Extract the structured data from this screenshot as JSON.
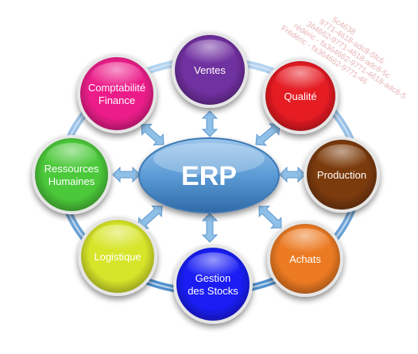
{
  "center": {
    "label": "ERP",
    "color": "#5b9bd5"
  },
  "ring_color": "#7fb3e0",
  "arrow_color": "#8fc0e8",
  "modules": [
    {
      "id": "ventes",
      "lines": [
        "Ventes"
      ],
      "color": "#7030a0"
    },
    {
      "id": "qualite",
      "lines": [
        "Qualité"
      ],
      "color": "#e51b23"
    },
    {
      "id": "production",
      "lines": [
        "Production"
      ],
      "color": "#7b3a0a"
    },
    {
      "id": "achats",
      "lines": [
        "Achats"
      ],
      "color": "#ec7a23"
    },
    {
      "id": "gestion-des-stocks",
      "lines": [
        "Gestion",
        "des Stocks"
      ],
      "color": "#1a1ef5"
    },
    {
      "id": "logistique",
      "lines": [
        "Logistique"
      ],
      "color": "#d7e52a"
    },
    {
      "id": "ressources-humaines",
      "lines": [
        "Ressources",
        "Humaines"
      ],
      "color": "#4cc93a"
    },
    {
      "id": "comptabilite-finance",
      "lines": [
        "Comptabilité",
        "Finance"
      ],
      "color": "#ec1e8a"
    }
  ],
  "watermark": {
    "lines": [
      "5c4638",
      "9771-4618-adc8-5fc6",
      "364662-9771-4618-adc8-5c",
      "rédéric - fa364662-9771-4618-adc8-5",
      "Frédéric - fa364662-9771-46"
    ]
  }
}
